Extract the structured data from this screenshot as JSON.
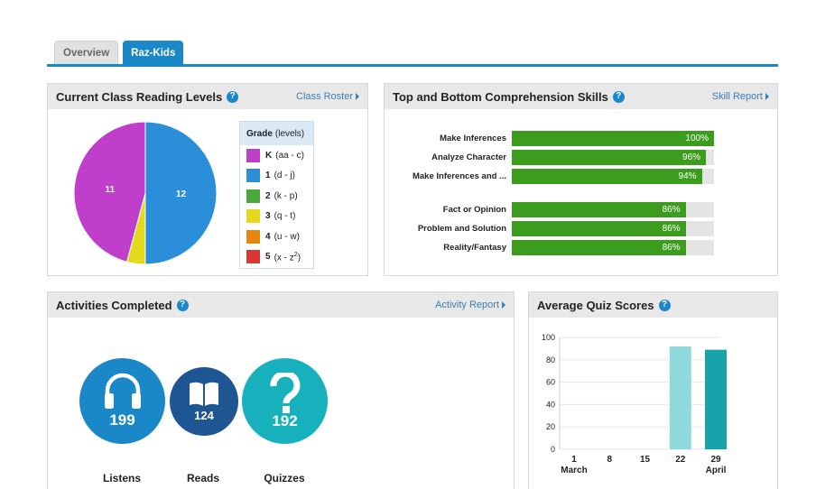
{
  "tabs": [
    {
      "label": "Overview",
      "active": false
    },
    {
      "label": "Raz-Kids",
      "active": true
    }
  ],
  "levels": {
    "title": "Current Class Reading Levels",
    "link": "Class Roster",
    "legend_title": "Grade",
    "legend_sub": "(levels)",
    "legend": [
      {
        "grade": "K",
        "range": "(aa - c)",
        "color": "#c03fca"
      },
      {
        "grade": "1",
        "range": "(d - j)",
        "color": "#2a8fd8"
      },
      {
        "grade": "2",
        "range": "(k - p)",
        "color": "#4aa73a"
      },
      {
        "grade": "3",
        "range": "(q - t)",
        "color": "#e4d91c"
      },
      {
        "grade": "4",
        "range": "(u - w)",
        "color": "#e8850e"
      },
      {
        "grade": "5",
        "range": "(x - z",
        "sup": "2",
        "close": ")",
        "color": "#d8382f"
      }
    ],
    "chart_data": {
      "type": "pie",
      "slices": [
        {
          "label": "K",
          "value": 11,
          "color": "#c03fca"
        },
        {
          "label": "1",
          "value": 12,
          "color": "#2a8fd8"
        },
        {
          "label": "3",
          "value": 1,
          "color": "#e4d91c"
        }
      ]
    }
  },
  "skills": {
    "title": "Top and Bottom Comprehension Skills",
    "link": "Skill Report",
    "chart_data": {
      "type": "bar",
      "orientation": "horizontal",
      "categories": [
        "Make Inferences",
        "Analyze Character",
        "Make Inferences and ...",
        "Fact or Opinion",
        "Problem and Solution",
        "Reality/Fantasy"
      ],
      "values": [
        100,
        96,
        94,
        86,
        86,
        86
      ],
      "labels": [
        "100%",
        "96%",
        "94%",
        "86%",
        "86%",
        "86%"
      ],
      "xlim": [
        0,
        100
      ]
    }
  },
  "activities": {
    "title": "Activities Completed",
    "link": "Activity Report",
    "items": [
      {
        "name": "Listens",
        "count": "199",
        "color": "#1a87c9",
        "icon": "headphones-icon"
      },
      {
        "name": "Reads",
        "count": "124",
        "color": "#1d5693",
        "icon": "book-icon"
      },
      {
        "name": "Quizzes",
        "count": "192",
        "color": "#16b1bd",
        "icon": "question-icon"
      }
    ]
  },
  "quiz": {
    "title": "Average Quiz Scores",
    "chart_data": {
      "type": "bar",
      "categories": [
        "1",
        "8",
        "15",
        "22",
        "29"
      ],
      "month_labels": [
        "March",
        "",
        "",
        "",
        "April"
      ],
      "values": [
        null,
        null,
        null,
        92,
        89
      ],
      "colors": [
        "#8fd8dc",
        "#8fd8dc",
        "#8fd8dc",
        "#8fd8dc",
        "#16a3aa"
      ],
      "ylim": [
        0,
        100
      ],
      "yticks": [
        "0",
        "20",
        "40",
        "60",
        "80",
        "100"
      ],
      "grid": true
    }
  }
}
